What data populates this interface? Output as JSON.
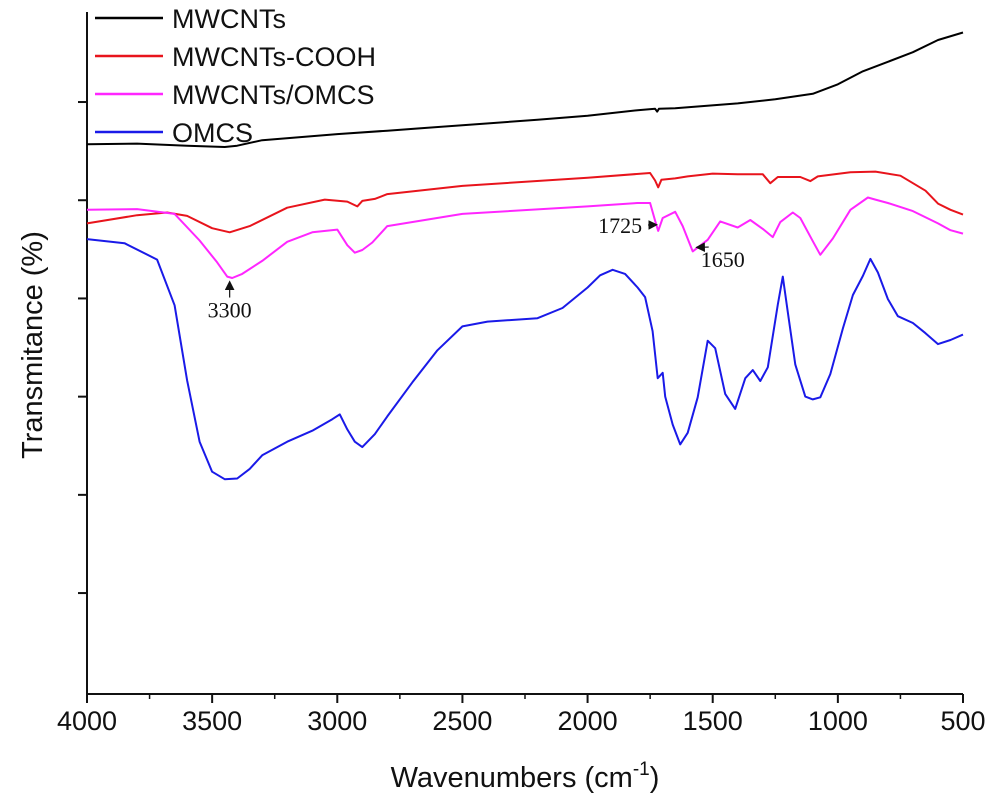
{
  "chart_data": {
    "type": "line",
    "title": "",
    "xlabel": "Wavenumbers (cm",
    "xlabel_sup": "-1",
    "xlabel_end": ")",
    "ylabel": "Transmitance (%)",
    "xlim": [
      4000,
      500
    ],
    "x_reversed": true,
    "x_ticks": [
      "4000",
      "3500",
      "3000",
      "2500",
      "2000",
      "1500",
      "1000",
      "500"
    ],
    "y_scale": "arbitrary offset units, no tick labels",
    "ylim": [
      0,
      100
    ],
    "legend_position": "top-left",
    "series": [
      {
        "name": "MWCNTs",
        "color": "#000000",
        "points": [
          [
            4000,
            80.6
          ],
          [
            3800,
            80.7
          ],
          [
            3600,
            80.4
          ],
          [
            3450,
            80.2
          ],
          [
            3400,
            80.4
          ],
          [
            3300,
            81.2
          ],
          [
            3000,
            82.1
          ],
          [
            2800,
            82.6
          ],
          [
            2500,
            83.4
          ],
          [
            2200,
            84.2
          ],
          [
            2000,
            84.8
          ],
          [
            1800,
            85.6
          ],
          [
            1730,
            85.8
          ],
          [
            1722,
            85.4
          ],
          [
            1715,
            85.8
          ],
          [
            1650,
            85.9
          ],
          [
            1400,
            86.6
          ],
          [
            1250,
            87.2
          ],
          [
            1100,
            88.0
          ],
          [
            1000,
            89.4
          ],
          [
            900,
            91.3
          ],
          [
            800,
            92.7
          ],
          [
            700,
            94.1
          ],
          [
            600,
            95.9
          ],
          [
            500,
            97.0
          ]
        ]
      },
      {
        "name": "MWCNTs-COOH",
        "color": "#e8141c",
        "points": [
          [
            4000,
            69.0
          ],
          [
            3800,
            70.2
          ],
          [
            3680,
            70.6
          ],
          [
            3600,
            70.1
          ],
          [
            3500,
            68.3
          ],
          [
            3430,
            67.7
          ],
          [
            3350,
            68.6
          ],
          [
            3200,
            71.3
          ],
          [
            3050,
            72.5
          ],
          [
            2960,
            72.2
          ],
          [
            2920,
            71.5
          ],
          [
            2900,
            72.3
          ],
          [
            2850,
            72.6
          ],
          [
            2800,
            73.3
          ],
          [
            2500,
            74.5
          ],
          [
            2000,
            75.7
          ],
          [
            1750,
            76.4
          ],
          [
            1730,
            75.3
          ],
          [
            1718,
            74.3
          ],
          [
            1705,
            75.4
          ],
          [
            1650,
            75.6
          ],
          [
            1600,
            75.9
          ],
          [
            1500,
            76.3
          ],
          [
            1400,
            76.2
          ],
          [
            1300,
            76.2
          ],
          [
            1270,
            74.9
          ],
          [
            1240,
            75.8
          ],
          [
            1150,
            75.8
          ],
          [
            1110,
            75.2
          ],
          [
            1080,
            75.9
          ],
          [
            950,
            76.5
          ],
          [
            850,
            76.6
          ],
          [
            750,
            76.0
          ],
          [
            650,
            73.8
          ],
          [
            600,
            71.9
          ],
          [
            550,
            71.0
          ],
          [
            500,
            70.3
          ]
        ]
      },
      {
        "name": "MWCNTs/OMCS",
        "color": "#ff26ff",
        "points": [
          [
            4000,
            71.0
          ],
          [
            3800,
            71.1
          ],
          [
            3650,
            70.4
          ],
          [
            3550,
            66.5
          ],
          [
            3480,
            63.3
          ],
          [
            3440,
            61.2
          ],
          [
            3420,
            61.0
          ],
          [
            3380,
            61.6
          ],
          [
            3300,
            63.5
          ],
          [
            3200,
            66.3
          ],
          [
            3100,
            67.7
          ],
          [
            3000,
            68.1
          ],
          [
            2960,
            65.8
          ],
          [
            2930,
            64.7
          ],
          [
            2900,
            65.1
          ],
          [
            2860,
            66.2
          ],
          [
            2800,
            68.6
          ],
          [
            2500,
            70.4
          ],
          [
            2000,
            71.5
          ],
          [
            1800,
            72.0
          ],
          [
            1750,
            72.0
          ],
          [
            1730,
            69.4
          ],
          [
            1718,
            67.9
          ],
          [
            1700,
            69.8
          ],
          [
            1650,
            70.7
          ],
          [
            1620,
            68.6
          ],
          [
            1580,
            64.9
          ],
          [
            1520,
            66.6
          ],
          [
            1470,
            69.3
          ],
          [
            1400,
            68.4
          ],
          [
            1350,
            69.5
          ],
          [
            1300,
            68.2
          ],
          [
            1260,
            67.0
          ],
          [
            1230,
            69.2
          ],
          [
            1180,
            70.6
          ],
          [
            1150,
            69.8
          ],
          [
            1100,
            66.4
          ],
          [
            1070,
            64.4
          ],
          [
            1020,
            66.8
          ],
          [
            950,
            71.0
          ],
          [
            880,
            72.8
          ],
          [
            850,
            72.5
          ],
          [
            800,
            72.0
          ],
          [
            700,
            70.8
          ],
          [
            600,
            69.0
          ],
          [
            550,
            68.0
          ],
          [
            500,
            67.5
          ]
        ]
      },
      {
        "name": "OMCS",
        "color": "#1a1ae8",
        "points": [
          [
            4000,
            66.7
          ],
          [
            3850,
            66.1
          ],
          [
            3720,
            63.7
          ],
          [
            3650,
            57.0
          ],
          [
            3600,
            46.0
          ],
          [
            3550,
            37.0
          ],
          [
            3500,
            32.6
          ],
          [
            3450,
            31.5
          ],
          [
            3400,
            31.6
          ],
          [
            3350,
            33.0
          ],
          [
            3300,
            35.0
          ],
          [
            3200,
            37.0
          ],
          [
            3100,
            38.6
          ],
          [
            3020,
            40.3
          ],
          [
            2990,
            41.0
          ],
          [
            2960,
            38.8
          ],
          [
            2930,
            37.0
          ],
          [
            2900,
            36.2
          ],
          [
            2850,
            38.1
          ],
          [
            2800,
            40.7
          ],
          [
            2700,
            45.7
          ],
          [
            2600,
            50.4
          ],
          [
            2500,
            53.9
          ],
          [
            2400,
            54.6
          ],
          [
            2200,
            55.1
          ],
          [
            2100,
            56.6
          ],
          [
            2000,
            59.6
          ],
          [
            1950,
            61.4
          ],
          [
            1900,
            62.2
          ],
          [
            1850,
            61.6
          ],
          [
            1800,
            59.6
          ],
          [
            1770,
            58.2
          ],
          [
            1740,
            53.2
          ],
          [
            1720,
            46.3
          ],
          [
            1700,
            47.1
          ],
          [
            1690,
            43.6
          ],
          [
            1660,
            39.5
          ],
          [
            1630,
            36.6
          ],
          [
            1600,
            38.3
          ],
          [
            1560,
            43.5
          ],
          [
            1520,
            51.8
          ],
          [
            1490,
            50.7
          ],
          [
            1450,
            44.0
          ],
          [
            1410,
            41.8
          ],
          [
            1370,
            46.3
          ],
          [
            1340,
            47.5
          ],
          [
            1310,
            45.9
          ],
          [
            1280,
            47.9
          ],
          [
            1240,
            57.1
          ],
          [
            1220,
            61.2
          ],
          [
            1200,
            56.0
          ],
          [
            1170,
            48.3
          ],
          [
            1130,
            43.6
          ],
          [
            1100,
            43.2
          ],
          [
            1070,
            43.5
          ],
          [
            1030,
            46.9
          ],
          [
            980,
            53.6
          ],
          [
            940,
            58.5
          ],
          [
            900,
            61.3
          ],
          [
            870,
            63.8
          ],
          [
            840,
            61.8
          ],
          [
            800,
            57.9
          ],
          [
            760,
            55.4
          ],
          [
            700,
            54.4
          ],
          [
            650,
            52.9
          ],
          [
            600,
            51.3
          ],
          [
            550,
            51.9
          ],
          [
            500,
            52.7
          ]
        ]
      }
    ],
    "annotations": [
      {
        "text": "3300",
        "x": 3430,
        "y": 55.2,
        "anchor_x": 3430,
        "anchor_y": 60.3,
        "arrow": "up"
      },
      {
        "text": "1725",
        "x": 1870,
        "y": 67.6,
        "anchor_x": 1728,
        "anchor_y": 68.8,
        "arrow": "right"
      },
      {
        "text": "1650",
        "x": 1460,
        "y": 62.6,
        "anchor_x": 1560,
        "anchor_y": 65.5,
        "arrow": "up-left"
      }
    ]
  }
}
